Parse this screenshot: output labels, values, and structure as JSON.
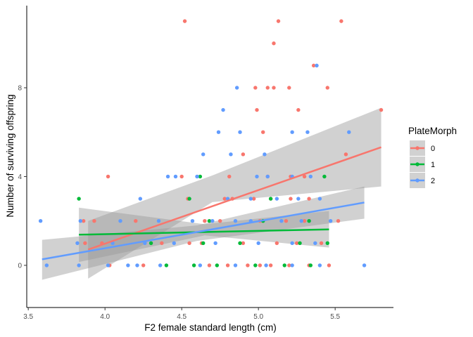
{
  "chart_data": {
    "type": "scatter",
    "xlabel": "F2 female standard length (cm)",
    "ylabel": "Number of surviving offspring",
    "xlim": [
      3.49,
      5.88
    ],
    "ylim": [
      -1.9,
      11.7
    ],
    "x_ticks": [
      3.5,
      4.0,
      4.5,
      5.0,
      5.5
    ],
    "x_tick_labels": [
      "3.5",
      "4.0",
      "4.5",
      "5.0",
      "5.5"
    ],
    "y_ticks": [
      0,
      4,
      8
    ],
    "y_tick_labels": [
      "0",
      "4",
      "8"
    ],
    "grid": false,
    "legend": {
      "title": "PlateMorph",
      "position": "right",
      "entries": [
        "0",
        "1",
        "2"
      ]
    },
    "series": [
      {
        "name": "0",
        "color": "#F8766D",
        "points": [
          [
            4.52,
            11
          ],
          [
            5.13,
            11
          ],
          [
            5.54,
            11
          ],
          [
            5.1,
            10
          ],
          [
            5.36,
            9
          ],
          [
            4.98,
            8
          ],
          [
            5.06,
            8
          ],
          [
            5.1,
            8
          ],
          [
            5.2,
            8
          ],
          [
            5.45,
            8
          ],
          [
            4.99,
            7
          ],
          [
            5.26,
            7
          ],
          [
            5.8,
            7
          ],
          [
            5.03,
            6
          ],
          [
            5.57,
            5
          ],
          [
            4.9,
            5
          ],
          [
            4.02,
            4
          ],
          [
            4.5,
            4
          ],
          [
            4.81,
            4
          ],
          [
            5.06,
            4
          ],
          [
            5.21,
            4
          ],
          [
            5.3,
            4
          ],
          [
            4.54,
            3
          ],
          [
            4.78,
            3
          ],
          [
            4.83,
            3
          ],
          [
            4.97,
            3
          ],
          [
            5.08,
            3
          ],
          [
            5.21,
            3
          ],
          [
            5.33,
            3
          ],
          [
            3.86,
            2
          ],
          [
            3.93,
            2
          ],
          [
            4.2,
            2
          ],
          [
            4.65,
            2
          ],
          [
            4.75,
            2
          ],
          [
            5.01,
            2
          ],
          [
            5.18,
            2
          ],
          [
            5.3,
            2
          ],
          [
            5.52,
            2
          ],
          [
            3.87,
            1
          ],
          [
            3.98,
            1
          ],
          [
            4.37,
            1
          ],
          [
            4.55,
            1
          ],
          [
            4.63,
            1
          ],
          [
            4.9,
            1
          ],
          [
            5.12,
            1
          ],
          [
            5.25,
            1
          ],
          [
            5.41,
            1
          ],
          [
            4.03,
            0
          ],
          [
            4.25,
            0
          ],
          [
            4.68,
            0
          ],
          [
            4.8,
            0
          ],
          [
            4.93,
            0
          ],
          [
            5.01,
            0
          ],
          [
            5.08,
            0
          ],
          [
            5.2,
            0
          ],
          [
            5.33,
            0
          ],
          [
            5.46,
            0
          ]
        ]
      },
      {
        "name": "1",
        "color": "#00BA38",
        "points": [
          [
            4.62,
            4
          ],
          [
            5.43,
            4
          ],
          [
            3.83,
            3
          ],
          [
            4.55,
            3
          ],
          [
            5.08,
            3
          ],
          [
            4.68,
            2
          ],
          [
            5.03,
            2
          ],
          [
            5.33,
            2
          ],
          [
            4.3,
            1
          ],
          [
            4.64,
            1
          ],
          [
            4.88,
            1
          ],
          [
            5.27,
            1
          ],
          [
            5.45,
            1
          ],
          [
            4.4,
            0
          ],
          [
            4.58,
            0
          ],
          [
            4.73,
            0
          ],
          [
            4.98,
            0
          ],
          [
            5.17,
            0
          ],
          [
            5.34,
            0
          ]
        ]
      },
      {
        "name": "2",
        "color": "#619CFF",
        "points": [
          [
            5.38,
            9
          ],
          [
            4.86,
            8
          ],
          [
            4.77,
            7
          ],
          [
            4.74,
            6
          ],
          [
            4.88,
            6
          ],
          [
            5.22,
            6
          ],
          [
            5.32,
            6
          ],
          [
            5.59,
            6
          ],
          [
            4.64,
            5
          ],
          [
            4.82,
            5
          ],
          [
            5.04,
            5
          ],
          [
            4.41,
            4
          ],
          [
            4.46,
            4
          ],
          [
            4.6,
            4
          ],
          [
            4.99,
            4
          ],
          [
            5.06,
            4
          ],
          [
            5.22,
            4
          ],
          [
            5.34,
            4
          ],
          [
            4.23,
            3
          ],
          [
            4.8,
            3
          ],
          [
            4.95,
            3
          ],
          [
            5.12,
            3
          ],
          [
            5.26,
            3
          ],
          [
            5.4,
            3
          ],
          [
            3.58,
            2
          ],
          [
            3.84,
            2
          ],
          [
            4.1,
            2
          ],
          [
            4.35,
            2
          ],
          [
            4.57,
            2
          ],
          [
            4.7,
            2
          ],
          [
            4.85,
            2
          ],
          [
            4.95,
            2
          ],
          [
            5.15,
            2
          ],
          [
            5.28,
            2
          ],
          [
            5.47,
            2
          ],
          [
            3.82,
            1
          ],
          [
            4.05,
            1
          ],
          [
            4.26,
            1
          ],
          [
            4.45,
            1
          ],
          [
            4.72,
            1
          ],
          [
            5.0,
            1
          ],
          [
            5.22,
            1
          ],
          [
            5.37,
            1
          ],
          [
            3.62,
            0
          ],
          [
            3.83,
            0
          ],
          [
            4.02,
            0
          ],
          [
            4.15,
            0
          ],
          [
            4.21,
            0
          ],
          [
            4.36,
            0
          ],
          [
            4.62,
            0
          ],
          [
            4.85,
            0
          ],
          [
            5.05,
            0
          ],
          [
            5.22,
            0
          ],
          [
            5.4,
            0
          ],
          [
            5.69,
            0
          ]
        ]
      }
    ],
    "fits": [
      {
        "name": "0",
        "color": "#F8766D",
        "x": [
          3.89,
          5.8
        ],
        "y": [
          0.71,
          5.32
        ],
        "band_upper": [
          2.0,
          4.05,
          7.1
        ],
        "band_lower": [
          -0.6,
          2.85,
          3.55
        ],
        "band_x": [
          3.89,
          4.7,
          5.8
        ]
      },
      {
        "name": "1",
        "color": "#00BA38",
        "x": [
          3.83,
          5.46
        ],
        "y": [
          1.38,
          1.62
        ],
        "band_upper": [
          2.6,
          1.85,
          2.45
        ],
        "band_lower": [
          0.15,
          1.35,
          0.8
        ],
        "band_x": [
          3.83,
          4.65,
          5.46
        ]
      },
      {
        "name": "2",
        "color": "#619CFF",
        "x": [
          3.59,
          5.69
        ],
        "y": [
          0.27,
          2.83
        ],
        "band_upper": [
          1.15,
          1.8,
          3.55
        ],
        "band_lower": [
          -0.65,
          1.1,
          2.1
        ],
        "band_x": [
          3.59,
          4.6,
          5.69
        ]
      }
    ]
  }
}
